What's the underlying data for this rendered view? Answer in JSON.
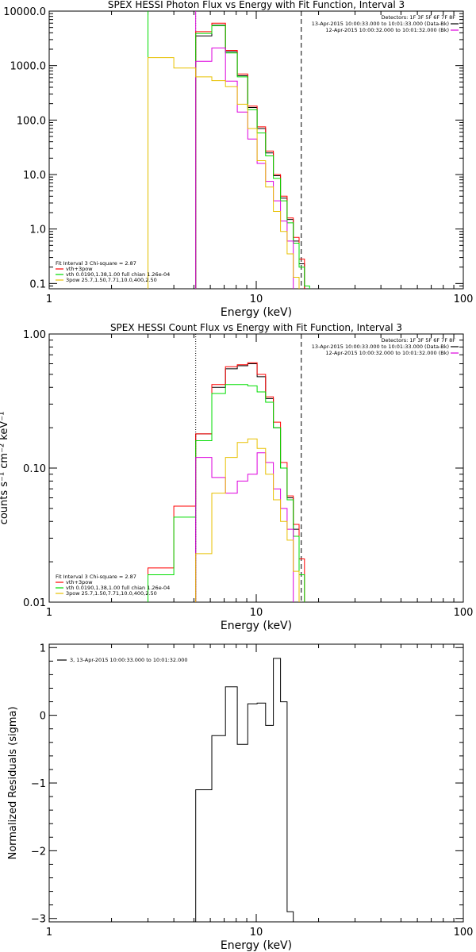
{
  "colors": {
    "black": "#000000",
    "red": "#ff0000",
    "green": "#00dd00",
    "magenta": "#dd00dd",
    "yellow": "#e8c000"
  },
  "chart_data": [
    {
      "type": "line",
      "step": true,
      "title": "SPEX HESSI Photon Flux vs Energy with Fit Function, Interval 3",
      "xlabel": "Energy (keV)",
      "ylabel": "",
      "xscale": "log",
      "yscale": "log",
      "xlim": [
        1,
        100
      ],
      "ylim": [
        0.08,
        10000
      ],
      "xticks": [
        1,
        10,
        100
      ],
      "xtick_labels": [
        "1",
        "10",
        "100"
      ],
      "yticks": [
        0.1,
        1,
        10,
        100,
        1000,
        10000
      ],
      "ytick_labels": [
        "0.1",
        "1.0",
        "10.0",
        "100.0",
        "1000.0",
        "10000.0"
      ],
      "vlines": [
        {
          "x": 3.0,
          "color": "green",
          "style": "solid"
        },
        {
          "x": 5.1,
          "color": "green",
          "style": "dotted"
        },
        {
          "x": 5.1,
          "color": "magenta",
          "style": "solid"
        },
        {
          "x": 16.5,
          "color": "black",
          "style": "dashed"
        }
      ],
      "legend": {
        "position": "top-right",
        "header": "Detectors: 1F 3F 5F 6F 7F 8F",
        "entries": [
          {
            "text": "13-Apr-2015 10:00:33.000 to 10:01:33.000 (Data-Bk)",
            "color": "black"
          },
          {
            "text": "12-Apr-2015 10:00:32.000 to 10:01:32.000 (Bk)",
            "color": "magenta"
          }
        ]
      },
      "fit_legend": {
        "position": "bottom-left",
        "header": "Fit Interval 3   Chi-square = 2.87",
        "entries": [
          {
            "text": "vth+3pow",
            "color": "red"
          },
          {
            "text": "vth 0.0190,1.38,1.00  full chian 1.26e-04",
            "color": "green"
          },
          {
            "text": "3pow 25.7,1.50,7.71,10.0,400,2.50",
            "color": "yellow"
          }
        ]
      },
      "edges": [
        3.0,
        4.0,
        5.1,
        6.1,
        7.1,
        8.1,
        9.1,
        10.1,
        11.1,
        12.1,
        13.1,
        14.1,
        15.1,
        16.1,
        17.1,
        18.1
      ],
      "series": [
        {
          "color": "black",
          "values": [
            null,
            null,
            3500,
            5500,
            1800,
            650,
            170,
            70,
            25,
            9.5,
            3.7,
            1.5,
            0.6,
            0.23,
            null
          ]
        },
        {
          "color": "red",
          "values": [
            null,
            null,
            4200,
            6000,
            1900,
            700,
            180,
            75,
            27,
            10,
            4.0,
            1.6,
            0.7,
            0.28,
            null
          ]
        },
        {
          "color": "green",
          "values": [
            null,
            null,
            3900,
            5400,
            1700,
            620,
            155,
            58,
            22,
            8.5,
            3.3,
            1.3,
            0.55,
            0.2,
            0.09
          ]
        },
        {
          "color": "magenta",
          "values": [
            null,
            null,
            1200,
            2100,
            520,
            140,
            45,
            16,
            7.5,
            3.3,
            1.4,
            0.6,
            null,
            null,
            null
          ]
        },
        {
          "color": "yellow",
          "values": [
            1400,
            900,
            620,
            530,
            410,
            195,
            70,
            18,
            5.9,
            2.1,
            0.9,
            0.35,
            0.13,
            null,
            null
          ]
        }
      ]
    },
    {
      "type": "line",
      "step": true,
      "title": "SPEX HESSI Count Flux vs Energy with Fit Function, Interval 3",
      "xlabel": "Energy (keV)",
      "ylabel": "counts s⁻¹ cm⁻² keV⁻¹",
      "xscale": "log",
      "yscale": "log",
      "xlim": [
        1,
        100
      ],
      "ylim": [
        0.01,
        1.0
      ],
      "xticks": [
        1,
        10,
        100
      ],
      "xtick_labels": [
        "1",
        "10",
        "100"
      ],
      "yticks": [
        0.01,
        0.1,
        1.0
      ],
      "ytick_labels": [
        "0.01",
        "0.10",
        "1.00"
      ],
      "vlines": [
        {
          "x": 5.1,
          "color": "black",
          "style": "dotted"
        },
        {
          "x": 16.5,
          "color": "black",
          "style": "dashed"
        }
      ],
      "legend": {
        "position": "top-right",
        "header": "Detectors: 1F 3F 5F 6F 7F 8F",
        "entries": [
          {
            "text": "13-Apr-2015 10:00:33.000 to 10:01:33.000 (Data-Bk)",
            "color": "black"
          },
          {
            "text": "12-Apr-2015 10:00:32.000 to 10:01:32.000 (Bk)",
            "color": "magenta"
          }
        ]
      },
      "fit_legend": {
        "position": "bottom-left",
        "header": "Fit Interval 3   Chi-square = 2.87",
        "entries": [
          {
            "text": "vth+3pow",
            "color": "red"
          },
          {
            "text": "vth 0.0190,1.38,1.00  full chian 1.26e-04",
            "color": "green"
          },
          {
            "text": "3pow 25.7,1.50,7.71,10.0,400,2.50",
            "color": "yellow"
          }
        ]
      },
      "edges": [
        3.0,
        4.0,
        5.1,
        6.1,
        7.1,
        8.1,
        9.1,
        10.1,
        11.1,
        12.1,
        13.1,
        14.1,
        15.1,
        16.1,
        17.1,
        18.1
      ],
      "series": [
        {
          "color": "black",
          "values": [
            null,
            null,
            0.18,
            0.4,
            0.55,
            0.58,
            0.6,
            0.48,
            0.33,
            0.2,
            0.1,
            0.06,
            0.035,
            null,
            null
          ]
        },
        {
          "color": "red",
          "values": [
            0.018,
            0.052,
            0.18,
            0.42,
            0.57,
            0.59,
            0.61,
            0.5,
            0.34,
            0.22,
            0.11,
            0.062,
            0.038,
            0.021,
            null
          ]
        },
        {
          "color": "green",
          "values": [
            0.016,
            0.043,
            0.16,
            0.36,
            0.42,
            0.42,
            0.41,
            0.37,
            0.31,
            0.2,
            0.1,
            0.058,
            0.031,
            0.016,
            null
          ]
        },
        {
          "color": "magenta",
          "values": [
            null,
            null,
            0.12,
            0.085,
            0.065,
            0.08,
            0.09,
            0.13,
            0.11,
            0.07,
            0.05,
            0.035,
            null,
            null,
            null
          ]
        },
        {
          "color": "yellow",
          "values": [
            null,
            null,
            0.023,
            0.065,
            0.12,
            0.155,
            0.165,
            0.14,
            0.09,
            0.058,
            0.04,
            0.029,
            0.017,
            null,
            null
          ]
        }
      ]
    },
    {
      "type": "line",
      "step": true,
      "title": "",
      "xlabel": "Energy (keV)",
      "ylabel": "Normalized Residuals (sigma)",
      "xscale": "log",
      "yscale": "linear",
      "xlim": [
        1,
        100
      ],
      "ylim": [
        -3.05,
        1.05
      ],
      "xticks": [
        1,
        10,
        100
      ],
      "xtick_labels": [
        "1",
        "10",
        "100"
      ],
      "yticks": [
        -3,
        -2,
        -1,
        0,
        1
      ],
      "ytick_labels": [
        "−3",
        "−2",
        "−1",
        "0",
        "1"
      ],
      "legend": {
        "position": "top-left",
        "entries": [
          {
            "text": "3, 13-Apr-2015 10:00:33.000 to 10:01:32.000",
            "color": "black"
          }
        ]
      },
      "edges": [
        5.1,
        6.1,
        7.1,
        8.1,
        9.1,
        10.1,
        11.1,
        12.1,
        13.1,
        14.1,
        15.1,
        16.1
      ],
      "series": [
        {
          "color": "black",
          "values": [
            -1.1,
            -0.3,
            0.42,
            -0.43,
            0.17,
            0.18,
            -0.15,
            0.84,
            0.2,
            -2.9,
            null
          ]
        }
      ]
    }
  ]
}
